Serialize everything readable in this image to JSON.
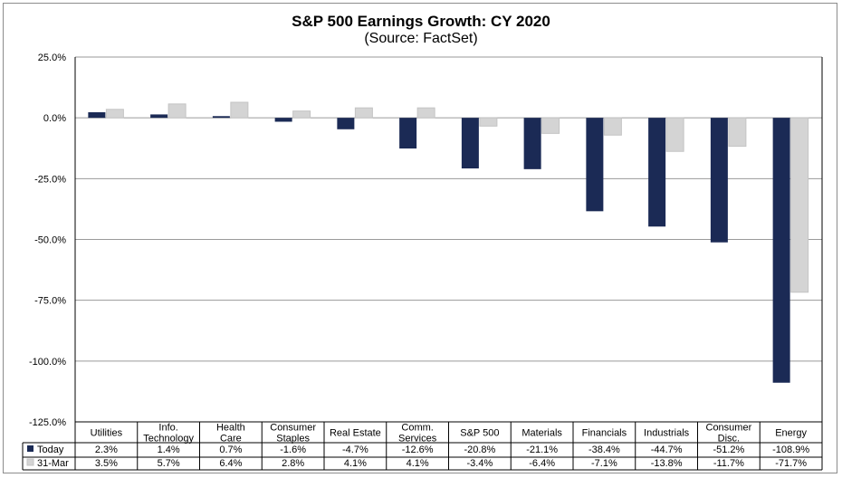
{
  "chart_data": {
    "type": "bar",
    "title": "S&P 500 Earnings Growth: CY 2020",
    "subtitle": "(Source: FactSet)",
    "categories": [
      [
        "Utilities"
      ],
      [
        "Info.",
        "Technology"
      ],
      [
        "Health",
        "Care"
      ],
      [
        "Consumer",
        "Staples"
      ],
      [
        "Real Estate"
      ],
      [
        "Comm.",
        "Services"
      ],
      [
        "S&P 500"
      ],
      [
        "Materials"
      ],
      [
        "Financials"
      ],
      [
        "Industrials"
      ],
      [
        "Consumer",
        "Disc."
      ],
      [
        "Energy"
      ]
    ],
    "series": [
      {
        "name": "Today",
        "color": "#1b2a55",
        "values": [
          2.3,
          1.4,
          0.7,
          -1.6,
          -4.7,
          -12.6,
          -20.8,
          -21.1,
          -38.4,
          -44.7,
          -51.2,
          -108.9
        ],
        "labels": [
          "2.3%",
          "1.4%",
          "0.7%",
          "-1.6%",
          "-4.7%",
          "-12.6%",
          "-20.8%",
          "-21.1%",
          "-38.4%",
          "-44.7%",
          "-51.2%",
          "-108.9%"
        ]
      },
      {
        "name": "31-Mar",
        "color": "#d4d4d4",
        "values": [
          3.5,
          5.7,
          6.4,
          2.8,
          4.1,
          4.1,
          -3.4,
          -6.4,
          -7.1,
          -13.8,
          -11.7,
          -71.7
        ],
        "labels": [
          "3.5%",
          "5.7%",
          "6.4%",
          "2.8%",
          "4.1%",
          "4.1%",
          "-3.4%",
          "-6.4%",
          "-7.1%",
          "-13.8%",
          "-11.7%",
          "-71.7%"
        ]
      }
    ],
    "ylim": [
      -125,
      25
    ],
    "yticks": [
      25,
      0,
      -25,
      -50,
      -75,
      -100,
      -125
    ],
    "ytick_labels": [
      "25.0%",
      "0.0%",
      "-25.0%",
      "-50.0%",
      "-75.0%",
      "-100.0%",
      "-125.0%"
    ],
    "grid": true,
    "data_table": true
  }
}
